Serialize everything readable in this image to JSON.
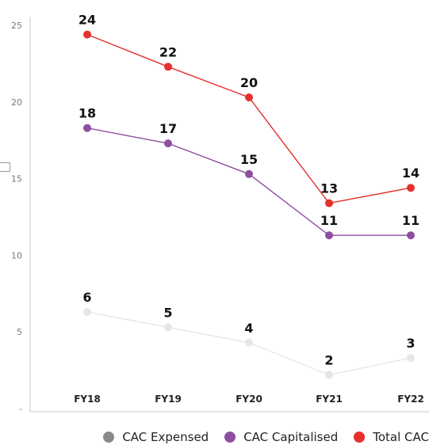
{
  "chart_data": {
    "type": "line",
    "categories": [
      "FY18",
      "FY19",
      "FY20",
      "FY21",
      "FY22"
    ],
    "series": [
      {
        "name": "CAC Expensed",
        "color": "#e6e6e6",
        "values": [
          6.3,
          5.3,
          4.3,
          2.2,
          3.3
        ],
        "labels": [
          "6",
          "5",
          "4",
          "2",
          "3"
        ]
      },
      {
        "name": "CAC Capitalised",
        "color": "#8e4fa0",
        "values": [
          18.3,
          17.3,
          15.3,
          11.3,
          11.3
        ],
        "labels": [
          "18",
          "17",
          "15",
          "11",
          "11"
        ]
      },
      {
        "name": "Total CAC",
        "color": "#e5302b",
        "values": [
          24.4,
          22.3,
          20.3,
          13.4,
          14.4
        ],
        "labels": [
          "24",
          "22",
          "20",
          "13",
          "14"
        ]
      }
    ],
    "yticks": [
      "-",
      "5",
      "10",
      "15",
      "20",
      "25"
    ],
    "ylim": [
      0,
      25
    ],
    "grid": false,
    "legend_position": "bottom-right",
    "legend_marker_colors": [
      "#8a8a8a",
      "#8e4fa0",
      "#e5302b"
    ]
  }
}
